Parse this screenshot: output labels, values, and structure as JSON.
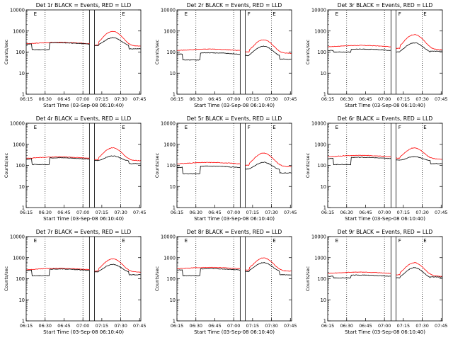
{
  "common": {
    "xlabel": "Start Time (03-Sep-08 06:10:40)",
    "ylabel": "Counts/sec",
    "x_ticks": [
      "06:15",
      "06:30",
      "06:45",
      "07:00",
      "07:15",
      "07:30",
      "07:45"
    ],
    "y_ticks": [
      "1",
      "10",
      "100",
      "1000",
      "10000"
    ],
    "colors": {
      "events": "#000000",
      "lld": "#ff0000",
      "axes": "#000000"
    }
  },
  "chart_data": [
    {
      "type": "line",
      "title": "Det 1r  BLACK = Events, RED = LLD",
      "flags": [
        "E",
        "E"
      ],
      "x_range_min": [
        4.3,
        95.3
      ],
      "ylim": [
        1,
        10000
      ],
      "y_scale": "log",
      "black": {
        "base": 240,
        "dip": 130,
        "peak": 500,
        "late": 0.9
      },
      "red": {
        "base": 250,
        "peak": 1000,
        "late": 0.9
      }
    },
    {
      "type": "line",
      "title": "Det 2r  BLACK = Events, RED = LLD",
      "flags": [
        "E",
        "F",
        "E"
      ],
      "x_range_min": [
        4.3,
        95.3
      ],
      "ylim": [
        1,
        10000
      ],
      "y_scale": "log",
      "black": {
        "base": 80,
        "dip": 42,
        "peak": 200,
        "late": 0.85
      },
      "red": {
        "base": 120,
        "peak": 400,
        "late": 0.85
      }
    },
    {
      "type": "line",
      "title": "Det 3r  BLACK = Events, RED = LLD",
      "flags": [
        "E",
        "F",
        "E"
      ],
      "x_range_min": [
        4.3,
        95.3
      ],
      "ylim": [
        1,
        10000
      ],
      "y_scale": "log",
      "black": {
        "base": 120,
        "dip": 100,
        "peak": 290,
        "late": 0.85
      },
      "red": {
        "base": 180,
        "peak": 700,
        "late": 0.85
      }
    },
    {
      "type": "line",
      "title": "Det 4r  BLACK = Events, RED = LLD",
      "flags": [
        "E",
        "E"
      ],
      "x_range_min": [
        4.3,
        95.3
      ],
      "ylim": [
        1,
        10000
      ],
      "y_scale": "log",
      "black": {
        "base": 200,
        "dip": 110,
        "peak": 300,
        "late": 0.9
      },
      "red": {
        "base": 220,
        "peak": 700,
        "late": 0.9
      }
    },
    {
      "type": "line",
      "title": "Det 5r  BLACK = Events, RED = LLD",
      "flags": [
        "E",
        "F",
        "E"
      ],
      "x_range_min": [
        4.3,
        95.3
      ],
      "ylim": [
        1,
        10000
      ],
      "y_scale": "log",
      "black": {
        "base": 80,
        "dip": 40,
        "peak": 150,
        "late": 0.85
      },
      "red": {
        "base": 120,
        "peak": 400,
        "late": 0.85
      }
    },
    {
      "type": "line",
      "title": "Det 6r  BLACK = Events, RED = LLD",
      "flags": [
        "E",
        "F",
        "E"
      ],
      "x_range_min": [
        4.3,
        95.3
      ],
      "ylim": [
        1,
        10000
      ],
      "y_scale": "log",
      "black": {
        "base": 210,
        "dip": 110,
        "peak": 280,
        "late": 0.9
      },
      "red": {
        "base": 260,
        "peak": 700,
        "late": 0.9
      }
    },
    {
      "type": "line",
      "title": "Det 7r  BLACK = Events, RED = LLD",
      "flags": [
        "E",
        "E"
      ],
      "x_range_min": [
        4.3,
        95.3
      ],
      "ylim": [
        1,
        10000
      ],
      "y_scale": "log",
      "black": {
        "base": 250,
        "dip": 140,
        "peak": 500,
        "late": 0.9
      },
      "red": {
        "base": 270,
        "peak": 900,
        "late": 0.9
      }
    },
    {
      "type": "line",
      "title": "Det 8r  BLACK = Events, RED = LLD",
      "flags": [
        "E",
        "E"
      ],
      "x_range_min": [
        4.3,
        95.3
      ],
      "ylim": [
        1,
        10000
      ],
      "y_scale": "log",
      "black": {
        "base": 260,
        "dip": 140,
        "peak": 600,
        "late": 0.9
      },
      "red": {
        "base": 300,
        "peak": 1000,
        "late": 0.9
      }
    },
    {
      "type": "line",
      "title": "Det 9r  BLACK = Events, RED = LLD",
      "flags": [
        "E",
        "F",
        "E"
      ],
      "x_range_min": [
        4.3,
        95.3
      ],
      "ylim": [
        1,
        10000
      ],
      "y_scale": "log",
      "black": {
        "base": 130,
        "dip": 110,
        "peak": 350,
        "late": 0.85
      },
      "red": {
        "base": 180,
        "peak": 600,
        "late": 0.85
      }
    }
  ]
}
